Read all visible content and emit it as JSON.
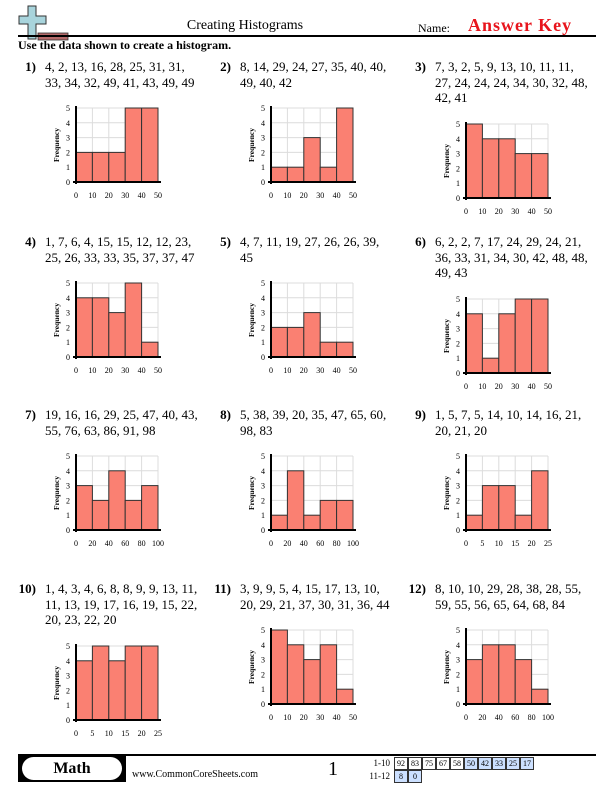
{
  "header": {
    "title": "Creating Histograms",
    "name_label": "Name:",
    "answer_key": "Answer Key",
    "answer_key_color": "#e8141c",
    "logo": "plus-sign-logo"
  },
  "instructions": "Use the data shown to create a histogram.",
  "problems": [
    {
      "number": "1)",
      "lines": [
        "4, 2, 13, 16, 28, 25, 31, 31,",
        "33, 34, 32, 49, 41, 43, 49, 49"
      ]
    },
    {
      "number": "2)",
      "lines": [
        "8, 14, 29, 24, 27, 35, 40, 40,",
        "49, 40, 42"
      ]
    },
    {
      "number": "3)",
      "lines": [
        "7, 3, 2, 5, 9, 13, 10, 11, 11,",
        "27, 24, 24, 24, 34, 30, 32, 48,",
        "42, 41"
      ]
    },
    {
      "number": "4)",
      "lines": [
        "1, 7, 6, 4, 15, 15, 12, 12, 23,",
        "25, 26, 33, 33, 35, 37, 37, 47"
      ]
    },
    {
      "number": "5)",
      "lines": [
        "4, 7, 11, 19, 27, 26, 26, 39,",
        "45"
      ]
    },
    {
      "number": "6)",
      "lines": [
        "6, 2, 2, 7, 17, 24, 29, 24, 21,",
        "36, 33, 31, 34, 30, 42, 48, 48,",
        "49, 43"
      ]
    },
    {
      "number": "7)",
      "lines": [
        "19, 16, 16, 29, 25, 47, 40, 43,",
        "55, 76, 63, 86, 91, 98"
      ]
    },
    {
      "number": "8)",
      "lines": [
        "5, 38, 39, 20, 35, 47, 65, 60,",
        "98, 83"
      ]
    },
    {
      "number": "9)",
      "lines": [
        "1, 5, 7, 5, 14, 10, 14, 16, 21,",
        "20, 21, 20"
      ]
    },
    {
      "number": "10)",
      "lines": [
        "1, 4, 3, 4, 6, 8, 8, 9, 9, 13, 11,",
        "11, 13, 19, 17, 16, 19, 15, 22,",
        "20, 23, 22, 20"
      ]
    },
    {
      "number": "11)",
      "lines": [
        "3, 9, 9, 5, 4, 15, 17, 13, 10,",
        "20, 29, 21, 37, 30, 31, 36, 44"
      ]
    },
    {
      "number": "12)",
      "lines": [
        "8, 10, 10, 29, 28, 38, 28, 55,",
        "59, 55, 56, 65, 64, 68, 84"
      ]
    }
  ],
  "chart_data": [
    {
      "type": "bar",
      "ylabel": "Frequency",
      "bin_edges": [
        0,
        10,
        20,
        30,
        40,
        50
      ],
      "values": [
        2,
        2,
        2,
        5,
        5
      ],
      "ylim": [
        0,
        5
      ],
      "yticks": [
        0,
        1,
        2,
        3,
        4,
        5
      ],
      "grid": true,
      "bar_color": "#fa8072"
    },
    {
      "type": "bar",
      "ylabel": "Frequency",
      "bin_edges": [
        0,
        10,
        20,
        30,
        40,
        50
      ],
      "values": [
        1,
        1,
        3,
        1,
        5
      ],
      "ylim": [
        0,
        5
      ],
      "yticks": [
        0,
        1,
        2,
        3,
        4,
        5
      ],
      "grid": true,
      "bar_color": "#fa8072"
    },
    {
      "type": "bar",
      "ylabel": "Frequency",
      "bin_edges": [
        0,
        10,
        20,
        30,
        40,
        50
      ],
      "values": [
        5,
        4,
        4,
        3,
        3
      ],
      "ylim": [
        0,
        5
      ],
      "yticks": [
        0,
        1,
        2,
        3,
        4,
        5
      ],
      "grid": true,
      "bar_color": "#fa8072"
    },
    {
      "type": "bar",
      "ylabel": "Frequency",
      "bin_edges": [
        0,
        10,
        20,
        30,
        40,
        50
      ],
      "values": [
        4,
        4,
        3,
        5,
        1
      ],
      "ylim": [
        0,
        5
      ],
      "yticks": [
        0,
        1,
        2,
        3,
        4,
        5
      ],
      "grid": true,
      "bar_color": "#fa8072"
    },
    {
      "type": "bar",
      "ylabel": "Frequency",
      "bin_edges": [
        0,
        10,
        20,
        30,
        40,
        50
      ],
      "values": [
        2,
        2,
        3,
        1,
        1
      ],
      "ylim": [
        0,
        5
      ],
      "yticks": [
        0,
        1,
        2,
        3,
        4,
        5
      ],
      "grid": true,
      "bar_color": "#fa8072"
    },
    {
      "type": "bar",
      "ylabel": "Frequency",
      "bin_edges": [
        0,
        10,
        20,
        30,
        40,
        50
      ],
      "values": [
        4,
        1,
        4,
        5,
        5
      ],
      "ylim": [
        0,
        5
      ],
      "yticks": [
        0,
        1,
        2,
        3,
        4,
        5
      ],
      "grid": true,
      "bar_color": "#fa8072"
    },
    {
      "type": "bar",
      "ylabel": "Frequency",
      "bin_edges": [
        0,
        20,
        40,
        60,
        80,
        100
      ],
      "values": [
        3,
        2,
        4,
        2,
        3
      ],
      "ylim": [
        0,
        5
      ],
      "yticks": [
        0,
        1,
        2,
        3,
        4,
        5
      ],
      "grid": true,
      "bar_color": "#fa8072"
    },
    {
      "type": "bar",
      "ylabel": "Frequency",
      "bin_edges": [
        0,
        20,
        40,
        60,
        80,
        100
      ],
      "values": [
        1,
        4,
        1,
        2,
        2
      ],
      "ylim": [
        0,
        5
      ],
      "yticks": [
        0,
        1,
        2,
        3,
        4,
        5
      ],
      "grid": true,
      "bar_color": "#fa8072"
    },
    {
      "type": "bar",
      "ylabel": "Frequency",
      "bin_edges": [
        0,
        5,
        10,
        15,
        20,
        25
      ],
      "values": [
        1,
        3,
        3,
        1,
        4
      ],
      "ylim": [
        0,
        5
      ],
      "yticks": [
        0,
        1,
        2,
        3,
        4,
        5
      ],
      "grid": true,
      "bar_color": "#fa8072"
    },
    {
      "type": "bar",
      "ylabel": "Frequency",
      "bin_edges": [
        0,
        5,
        10,
        15,
        20,
        25
      ],
      "values": [
        4,
        5,
        4,
        5,
        5
      ],
      "ylim": [
        0,
        5
      ],
      "yticks": [
        0,
        1,
        2,
        3,
        4,
        5
      ],
      "grid": true,
      "bar_color": "#fa8072"
    },
    {
      "type": "bar",
      "ylabel": "Frequency",
      "bin_edges": [
        0,
        10,
        20,
        30,
        40,
        50
      ],
      "values": [
        5,
        4,
        3,
        4,
        1
      ],
      "ylim": [
        0,
        5
      ],
      "yticks": [
        0,
        1,
        2,
        3,
        4,
        5
      ],
      "grid": true,
      "bar_color": "#fa8072"
    },
    {
      "type": "bar",
      "ylabel": "Frequency",
      "bin_edges": [
        0,
        20,
        40,
        60,
        80,
        100
      ],
      "values": [
        3,
        4,
        4,
        3,
        1
      ],
      "ylim": [
        0,
        5
      ],
      "yticks": [
        0,
        1,
        2,
        3,
        4,
        5
      ],
      "grid": true,
      "bar_color": "#fa8072"
    }
  ],
  "footer": {
    "subject": "Math",
    "website": "www.CommonCoreSheets.com",
    "page_number": "1",
    "score_rows": [
      {
        "label": "1-10",
        "cells": [
          "92",
          "83",
          "75",
          "67",
          "58",
          "50",
          "42",
          "33",
          "25",
          "17"
        ]
      },
      {
        "label": "11-12",
        "cells": [
          "8",
          "0"
        ]
      }
    ],
    "highlight_color": "#cce0ff"
  }
}
